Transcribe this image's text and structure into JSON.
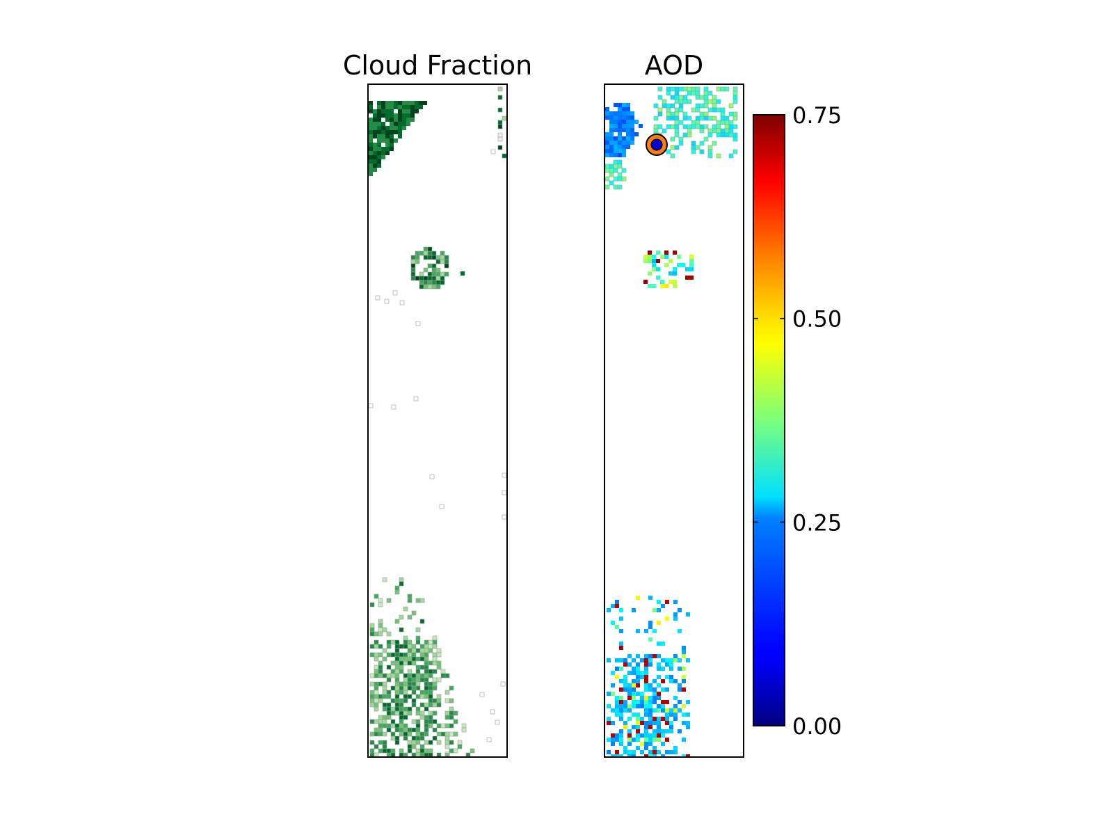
{
  "chart_data": [
    {
      "type": "heatmap",
      "title": "Cloud Fraction",
      "xlabel": "",
      "ylabel": "",
      "colormap": "greens",
      "colors": {
        "high": "#00441b",
        "mid": "#41ab5d",
        "low": "#e5f5e0",
        "edge": "#b0b0b0"
      },
      "grid": false
    },
    {
      "type": "heatmap",
      "title": "AOD",
      "xlabel": "",
      "ylabel": "",
      "colormap": "jet",
      "colors": {
        "marker_fill": "#0000cc",
        "marker_ring": "#ff7f0e"
      },
      "grid": false,
      "colorbar": {
        "range": [
          0.0,
          0.75
        ],
        "ticks": [
          "0.00",
          "0.25",
          "0.50",
          "0.75"
        ],
        "tick_values": [
          0.0,
          0.25,
          0.5,
          0.75
        ]
      }
    }
  ]
}
